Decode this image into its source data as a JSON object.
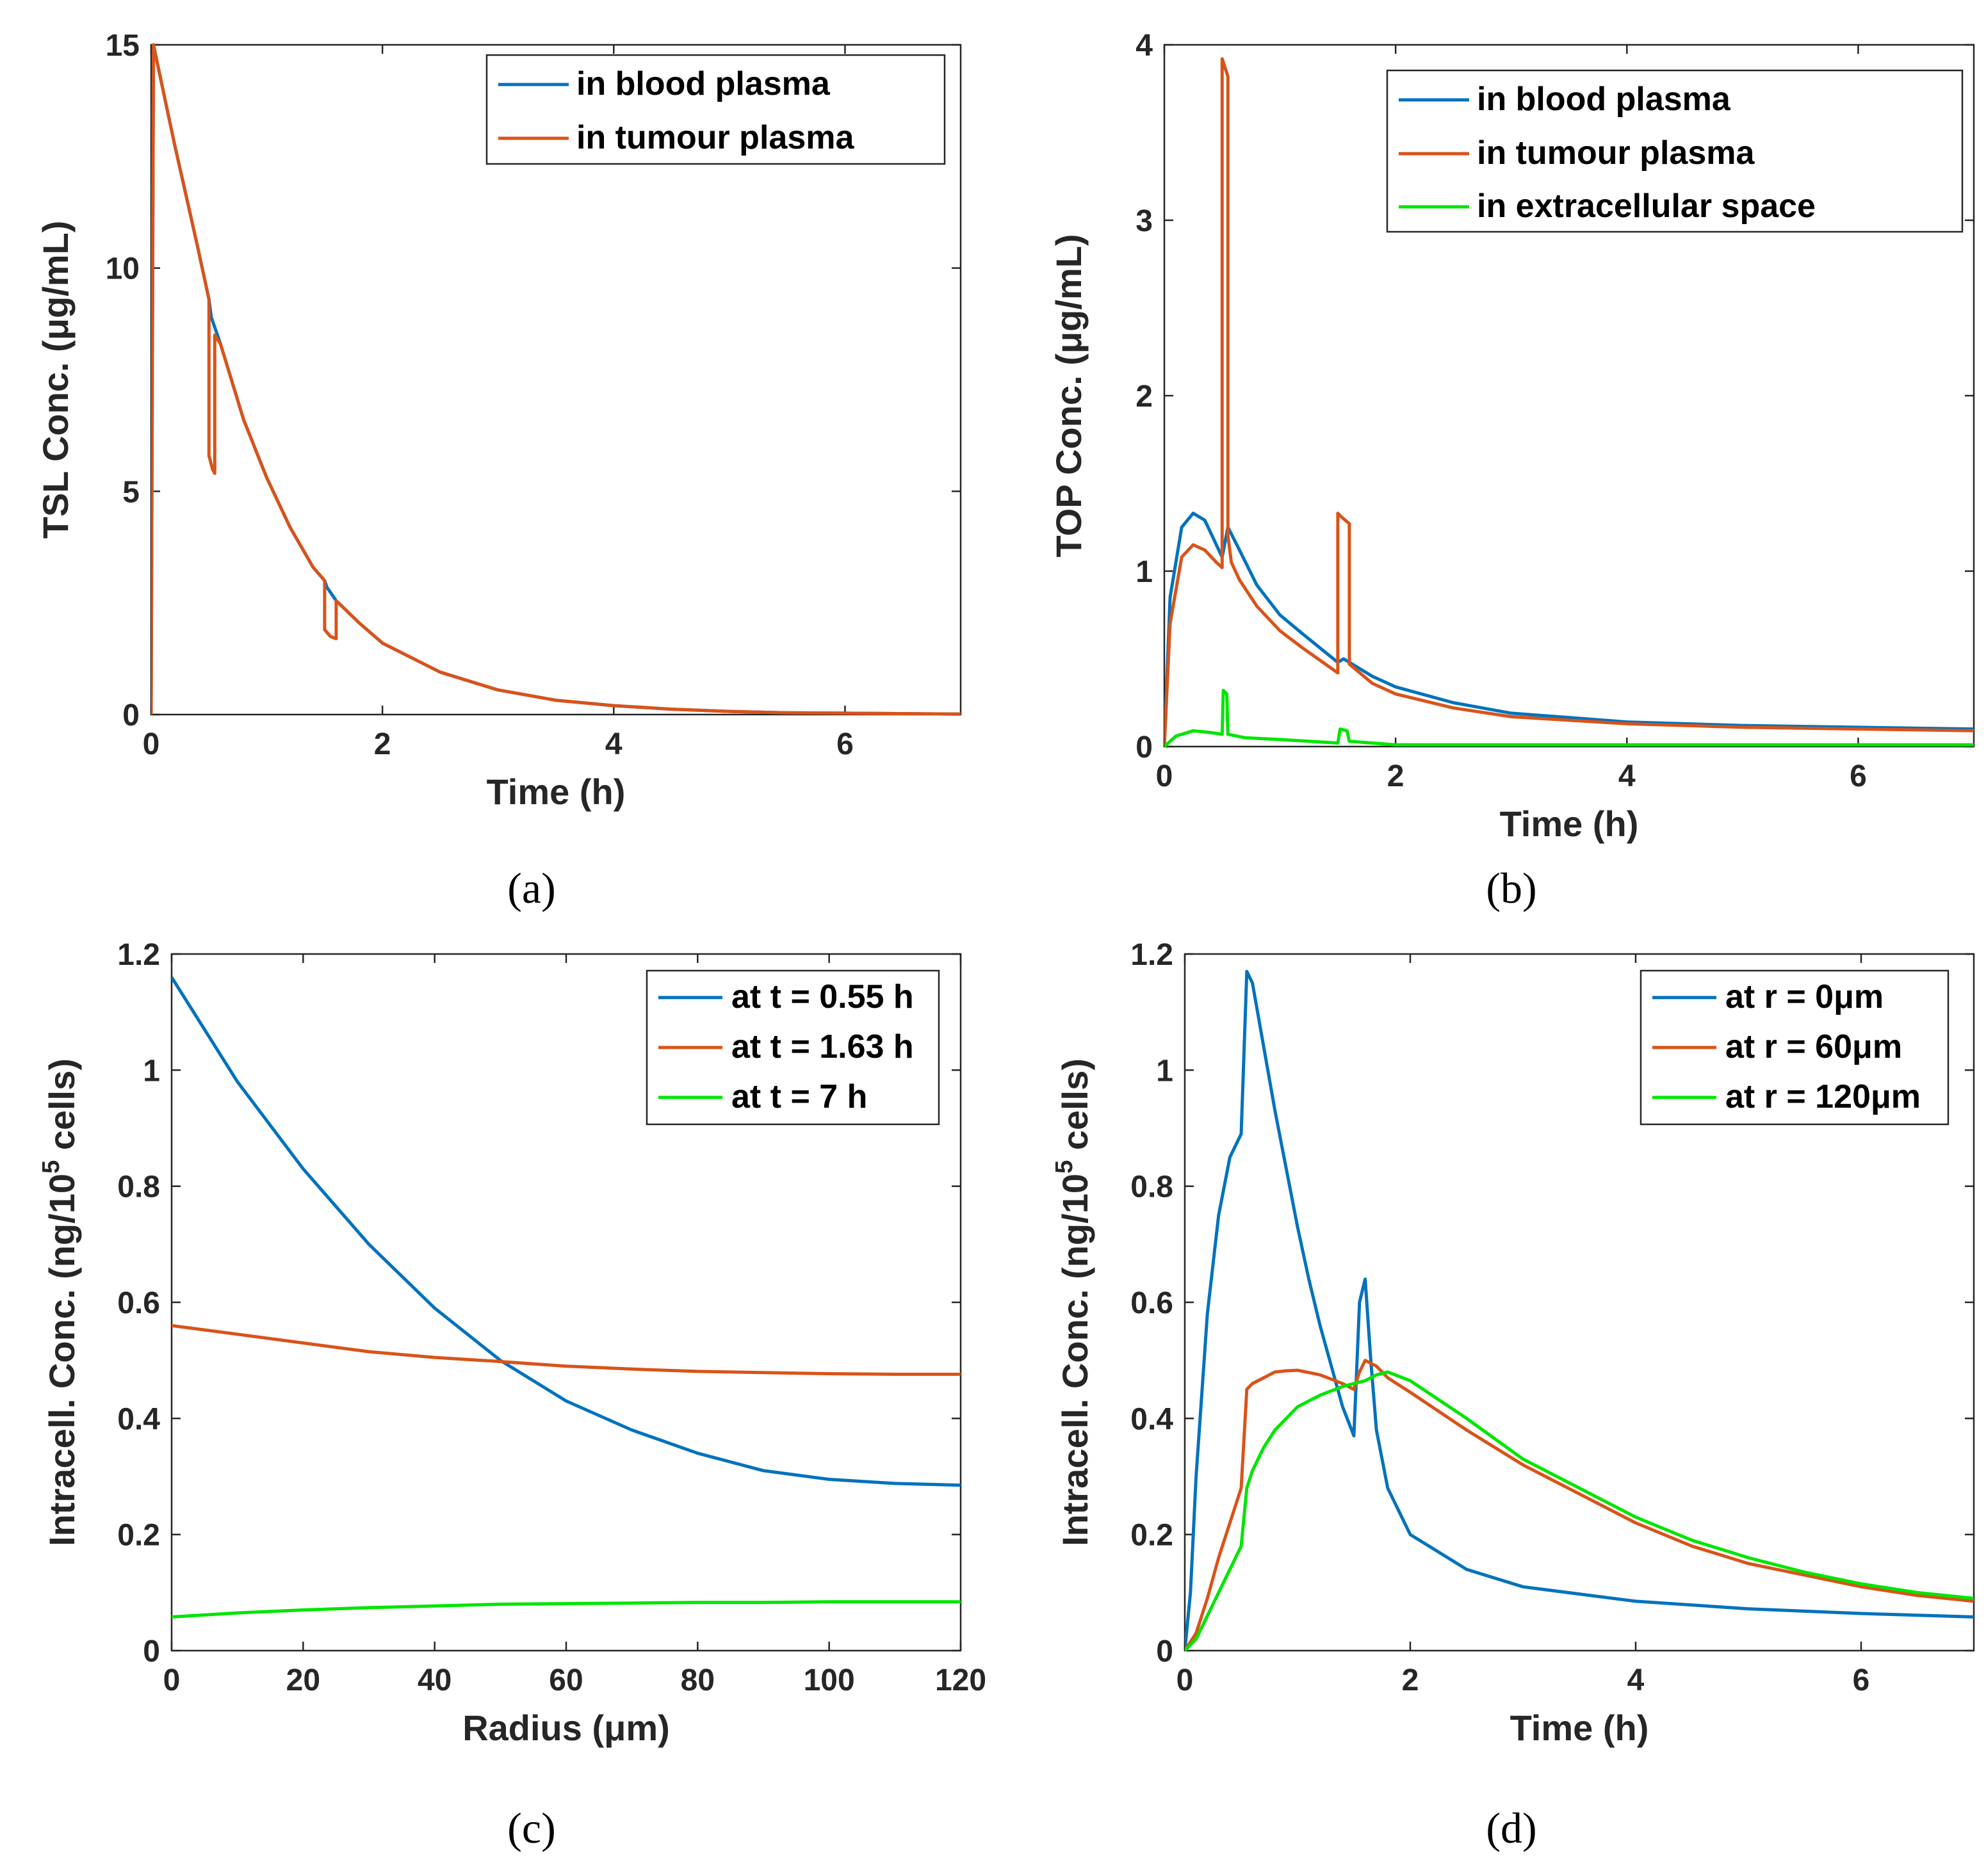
{
  "chart_data": [
    {
      "id": "a",
      "type": "line",
      "caption": "(a)",
      "xlabel": "Time (h)",
      "ylabel": "TSL Conc. (μg/mL)",
      "xlim": [
        0,
        7
      ],
      "ylim": [
        0,
        15
      ],
      "xticks": [
        0,
        2,
        4,
        6
      ],
      "yticks": [
        0,
        5,
        10,
        15
      ],
      "legend_position": "top-right",
      "series": [
        {
          "name": "in blood plasma",
          "color": "#0072BD",
          "x": [
            0,
            0.02,
            0.2,
            0.4,
            0.5,
            0.52,
            0.6,
            0.8,
            1.0,
            1.2,
            1.4,
            1.5,
            1.52,
            1.6,
            1.8,
            2.0,
            2.5,
            3.0,
            3.5,
            4.0,
            4.5,
            5.0,
            5.5,
            6.0,
            6.5,
            7.0
          ],
          "y": [
            0,
            15,
            12.8,
            10.5,
            9.3,
            8.9,
            8.3,
            6.6,
            5.3,
            4.2,
            3.3,
            3.0,
            2.85,
            2.55,
            2.05,
            1.6,
            0.95,
            0.55,
            0.32,
            0.2,
            0.12,
            0.07,
            0.04,
            0.03,
            0.02,
            0.01
          ]
        },
        {
          "name": "in tumour plasma",
          "color": "#D95319",
          "x": [
            0,
            0.02,
            0.2,
            0.4,
            0.5,
            0.5,
            0.53,
            0.55,
            0.55,
            0.6,
            0.8,
            1.0,
            1.2,
            1.4,
            1.5,
            1.5,
            1.55,
            1.6,
            1.6,
            1.8,
            2.0,
            2.5,
            3.0,
            3.5,
            4.0,
            4.5,
            5.0,
            5.5,
            6.0,
            6.5,
            7.0
          ],
          "y": [
            0,
            15,
            12.8,
            10.5,
            9.3,
            5.8,
            5.5,
            5.4,
            8.5,
            8.3,
            6.6,
            5.3,
            4.2,
            3.3,
            3.0,
            1.9,
            1.75,
            1.7,
            2.55,
            2.05,
            1.6,
            0.95,
            0.55,
            0.32,
            0.2,
            0.12,
            0.07,
            0.04,
            0.03,
            0.02,
            0.01
          ]
        }
      ]
    },
    {
      "id": "b",
      "type": "line",
      "caption": "(b)",
      "xlabel": "Time (h)",
      "ylabel": "TOP Conc. (μg/mL)",
      "xlim": [
        0,
        7
      ],
      "ylim": [
        0,
        4
      ],
      "xticks": [
        0,
        2,
        4,
        6
      ],
      "yticks": [
        0,
        1,
        2,
        3,
        4
      ],
      "legend_position": "top-right",
      "series": [
        {
          "name": "in blood plasma",
          "color": "#0072BD",
          "x": [
            0,
            0.05,
            0.15,
            0.25,
            0.35,
            0.5,
            0.55,
            0.65,
            0.8,
            1.0,
            1.2,
            1.5,
            1.55,
            1.6,
            1.8,
            2.0,
            2.5,
            3.0,
            4.0,
            5.0,
            6.0,
            7.0
          ],
          "y": [
            0,
            0.85,
            1.25,
            1.33,
            1.29,
            1.08,
            1.25,
            1.12,
            0.92,
            0.75,
            0.64,
            0.48,
            0.5,
            0.48,
            0.4,
            0.34,
            0.25,
            0.19,
            0.14,
            0.12,
            0.11,
            0.1
          ]
        },
        {
          "name": "in tumour plasma",
          "color": "#D95319",
          "x": [
            0,
            0.05,
            0.15,
            0.25,
            0.35,
            0.45,
            0.5,
            0.5,
            0.52,
            0.55,
            0.55,
            0.58,
            0.65,
            0.8,
            1.0,
            1.2,
            1.5,
            1.5,
            1.53,
            1.6,
            1.6,
            1.8,
            2.0,
            2.5,
            3.0,
            4.0,
            5.0,
            6.0,
            7.0
          ],
          "y": [
            0,
            0.7,
            1.08,
            1.15,
            1.12,
            1.05,
            1.02,
            3.92,
            3.88,
            3.82,
            1.2,
            1.05,
            0.95,
            0.8,
            0.66,
            0.56,
            0.42,
            1.33,
            1.31,
            1.27,
            0.47,
            0.36,
            0.3,
            0.22,
            0.17,
            0.13,
            0.11,
            0.1,
            0.09
          ]
        },
        {
          "name": "in extracellular space",
          "color": "#00E600",
          "x": [
            0,
            0.1,
            0.25,
            0.4,
            0.5,
            0.51,
            0.54,
            0.55,
            0.7,
            1.0,
            1.5,
            1.52,
            1.58,
            1.6,
            1.8,
            2.0,
            3.0,
            4.0,
            5.0,
            6.0,
            7.0
          ],
          "y": [
            0,
            0.06,
            0.09,
            0.08,
            0.07,
            0.32,
            0.3,
            0.07,
            0.05,
            0.04,
            0.02,
            0.1,
            0.09,
            0.03,
            0.02,
            0.01,
            0.01,
            0.01,
            0.01,
            0.01,
            0.01
          ]
        }
      ]
    },
    {
      "id": "c",
      "type": "line",
      "caption": "(c)",
      "xlabel": "Radius (μm)",
      "ylabel": "Intracell. Conc. (ng/10^5 cells)",
      "xlim": [
        0,
        120
      ],
      "ylim": [
        0,
        1.2
      ],
      "xticks": [
        0,
        20,
        40,
        60,
        80,
        100,
        120
      ],
      "yticks": [
        0,
        0.2,
        0.4,
        0.6,
        0.8,
        1,
        1.2
      ],
      "ytick_labels": [
        "0",
        "0.2",
        "0.4",
        "0.6",
        "0.8",
        "1",
        "1.2"
      ],
      "legend_position": "top-right",
      "series": [
        {
          "name": "at t = 0.55 h",
          "color": "#0072BD",
          "x": [
            0,
            10,
            20,
            30,
            40,
            50,
            60,
            70,
            80,
            90,
            100,
            110,
            120
          ],
          "y": [
            1.16,
            0.98,
            0.83,
            0.7,
            0.59,
            0.5,
            0.43,
            0.38,
            0.34,
            0.31,
            0.295,
            0.288,
            0.285
          ]
        },
        {
          "name": "at t = 1.63 h",
          "color": "#D95319",
          "x": [
            0,
            10,
            20,
            30,
            40,
            50,
            60,
            70,
            80,
            90,
            100,
            110,
            120
          ],
          "y": [
            0.56,
            0.545,
            0.53,
            0.515,
            0.505,
            0.498,
            0.49,
            0.485,
            0.481,
            0.479,
            0.477,
            0.476,
            0.476
          ]
        },
        {
          "name": "at t = 7 h",
          "color": "#00E600",
          "x": [
            0,
            10,
            20,
            30,
            40,
            50,
            60,
            70,
            80,
            90,
            100,
            110,
            120
          ],
          "y": [
            0.058,
            0.065,
            0.07,
            0.074,
            0.077,
            0.08,
            0.081,
            0.082,
            0.083,
            0.083,
            0.084,
            0.084,
            0.084
          ]
        }
      ]
    },
    {
      "id": "d",
      "type": "line",
      "caption": "(d)",
      "xlabel": "Time (h)",
      "ylabel": "Intracell. Conc. (ng/10^5 cells)",
      "xlim": [
        0,
        7
      ],
      "ylim": [
        0,
        1.2
      ],
      "xticks": [
        0,
        2,
        4,
        6
      ],
      "yticks": [
        0,
        0.2,
        0.4,
        0.6,
        0.8,
        1,
        1.2
      ],
      "ytick_labels": [
        "0",
        "0.2",
        "0.4",
        "0.6",
        "0.8",
        "1",
        "1.2"
      ],
      "legend_position": "top-right",
      "series": [
        {
          "name": "at r = 0μm",
          "color": "#0072BD",
          "x": [
            0,
            0.05,
            0.1,
            0.2,
            0.3,
            0.4,
            0.5,
            0.55,
            0.6,
            0.7,
            0.8,
            0.9,
            1.0,
            1.1,
            1.2,
            1.3,
            1.4,
            1.5,
            1.55,
            1.6,
            1.65,
            1.7,
            1.8,
            2.0,
            2.5,
            3.0,
            4.0,
            5.0,
            6.0,
            7.0
          ],
          "y": [
            0,
            0.1,
            0.3,
            0.58,
            0.75,
            0.85,
            0.89,
            1.17,
            1.15,
            1.04,
            0.93,
            0.83,
            0.73,
            0.64,
            0.56,
            0.49,
            0.42,
            0.37,
            0.6,
            0.64,
            0.5,
            0.38,
            0.28,
            0.2,
            0.14,
            0.11,
            0.085,
            0.072,
            0.064,
            0.058
          ]
        },
        {
          "name": "at r = 60μm",
          "color": "#D95319",
          "x": [
            0,
            0.1,
            0.2,
            0.3,
            0.4,
            0.5,
            0.55,
            0.6,
            0.7,
            0.8,
            0.9,
            1.0,
            1.2,
            1.4,
            1.5,
            1.55,
            1.6,
            1.7,
            1.8,
            2.0,
            2.5,
            3.0,
            3.5,
            4.0,
            4.5,
            5.0,
            5.5,
            6.0,
            6.5,
            7.0
          ],
          "y": [
            0,
            0.03,
            0.09,
            0.16,
            0.22,
            0.28,
            0.45,
            0.46,
            0.47,
            0.48,
            0.482,
            0.483,
            0.475,
            0.46,
            0.45,
            0.48,
            0.5,
            0.49,
            0.47,
            0.445,
            0.38,
            0.32,
            0.27,
            0.22,
            0.18,
            0.15,
            0.13,
            0.11,
            0.095,
            0.085
          ]
        },
        {
          "name": "at r = 120μm",
          "color": "#00E600",
          "x": [
            0,
            0.1,
            0.2,
            0.3,
            0.4,
            0.5,
            0.55,
            0.6,
            0.7,
            0.8,
            1.0,
            1.2,
            1.4,
            1.5,
            1.6,
            1.7,
            1.8,
            2.0,
            2.5,
            3.0,
            3.5,
            4.0,
            4.5,
            5.0,
            5.5,
            6.0,
            6.5,
            7.0
          ],
          "y": [
            0,
            0.02,
            0.06,
            0.1,
            0.14,
            0.18,
            0.28,
            0.31,
            0.35,
            0.38,
            0.42,
            0.44,
            0.455,
            0.46,
            0.465,
            0.475,
            0.48,
            0.465,
            0.4,
            0.33,
            0.28,
            0.23,
            0.19,
            0.16,
            0.135,
            0.115,
            0.1,
            0.09
          ]
        }
      ]
    }
  ]
}
